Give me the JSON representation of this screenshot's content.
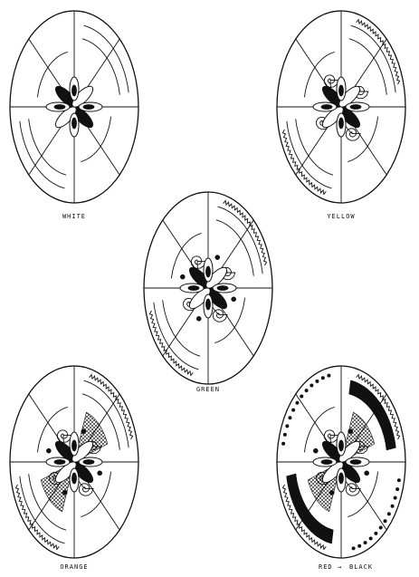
{
  "sheet": {
    "background": "#ffffff",
    "ink": "#111111",
    "stages": [
      {
        "caption": "WHITE",
        "detail": "plain"
      },
      {
        "caption": "YELLOW",
        "detail": "yellow"
      },
      {
        "caption": "GREEN",
        "detail": "green"
      },
      {
        "caption": "ORANGE",
        "detail": "orange"
      },
      {
        "caption": "RED",
        "caption_end": "BLACK",
        "arrow": "→",
        "detail": "black"
      }
    ]
  }
}
